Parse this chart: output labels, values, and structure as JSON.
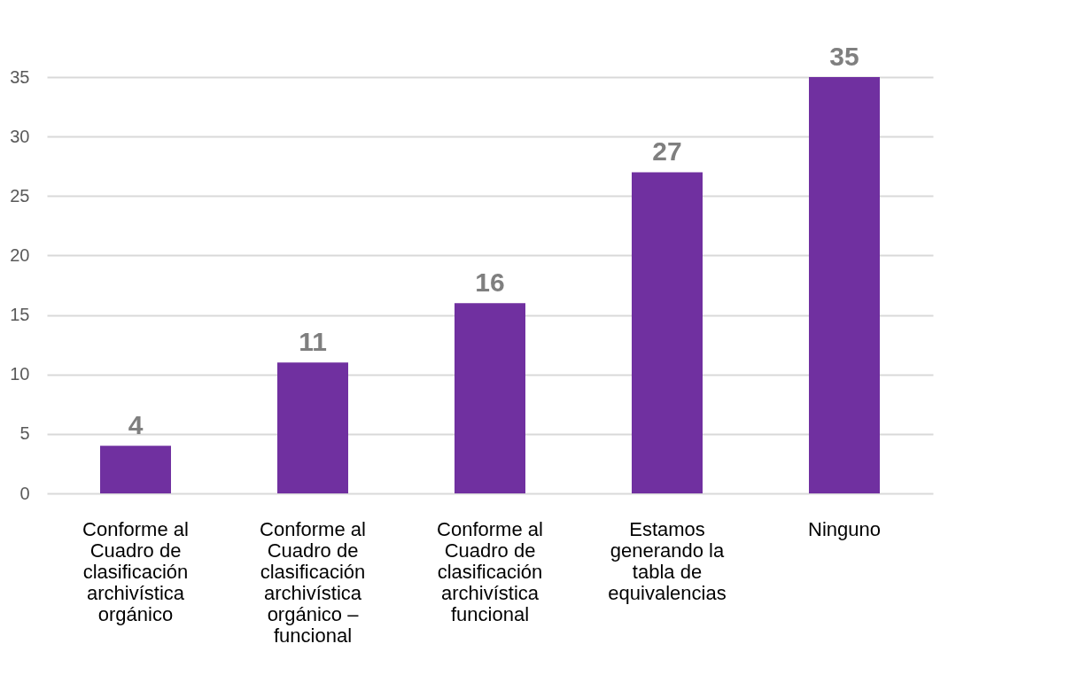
{
  "chart_data": {
    "type": "bar",
    "categories": [
      "Conforme al Cuadro de clasificación archivística orgánico",
      "Conforme al Cuadro de clasificación archivística orgánico – funcional",
      "Conforme al Cuadro de clasificación archivística funcional",
      "Estamos generando la tabla de equivalencias",
      "Ninguno"
    ],
    "values": [
      4,
      11,
      16,
      27,
      35
    ],
    "color": "#7030a0",
    "ylim": [
      0,
      35
    ],
    "yticks": [
      0,
      5,
      10,
      15,
      20,
      25,
      30,
      35
    ],
    "grid": "y",
    "data_labels": true
  }
}
